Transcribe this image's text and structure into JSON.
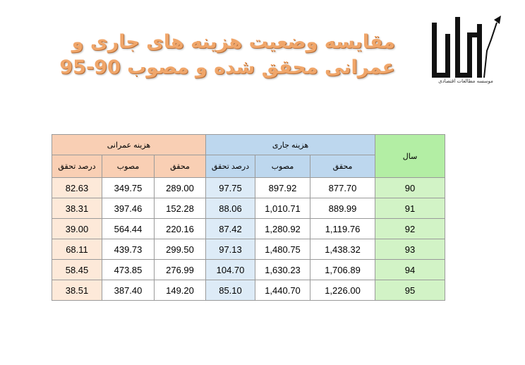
{
  "title": {
    "line1": "مقایسه وضعیت هزینه های جاری و",
    "line2": "عمرانی محقق شده و مصوب 90-95"
  },
  "logo": {
    "name": "bamdad-logo",
    "subtitle": "موسسه مطالعات اقتصادی"
  },
  "colors": {
    "development_header": "#f9cfb4",
    "current_header": "#bdd7ee",
    "year_header": "#b3eea4",
    "title": "#f0a66a"
  },
  "table": {
    "year_header": "سال",
    "development_header": "هزینه عمرانی",
    "current_header": "هزینه جاری",
    "sub_headers": {
      "realized": "محقق",
      "approved": "مصوب",
      "percent": "درصد تحقق"
    },
    "rows": [
      {
        "year": "90",
        "cur_realized": "877.70",
        "cur_approved": "897.92",
        "cur_percent": "97.75",
        "dev_realized": "289.00",
        "dev_approved": "349.75",
        "dev_percent": "82.63"
      },
      {
        "year": "91",
        "cur_realized": "889.99",
        "cur_approved": "1,010.71",
        "cur_percent": "88.06",
        "dev_realized": "152.28",
        "dev_approved": "397.46",
        "dev_percent": "38.31"
      },
      {
        "year": "92",
        "cur_realized": "1,119.76",
        "cur_approved": "1,280.92",
        "cur_percent": "87.42",
        "dev_realized": "220.16",
        "dev_approved": "564.44",
        "dev_percent": "39.00"
      },
      {
        "year": "93",
        "cur_realized": "1,438.32",
        "cur_approved": "1,480.75",
        "cur_percent": "97.13",
        "dev_realized": "299.50",
        "dev_approved": "439.73",
        "dev_percent": "68.11"
      },
      {
        "year": "94",
        "cur_realized": "1,706.89",
        "cur_approved": "1,630.23",
        "cur_percent": "104.70",
        "dev_realized": "276.99",
        "dev_approved": "473.85",
        "dev_percent": "58.45"
      },
      {
        "year": "95",
        "cur_realized": "1,226.00",
        "cur_approved": "1,440.70",
        "cur_percent": "85.10",
        "dev_realized": "149.20",
        "dev_approved": "387.40",
        "dev_percent": "38.51"
      }
    ]
  }
}
